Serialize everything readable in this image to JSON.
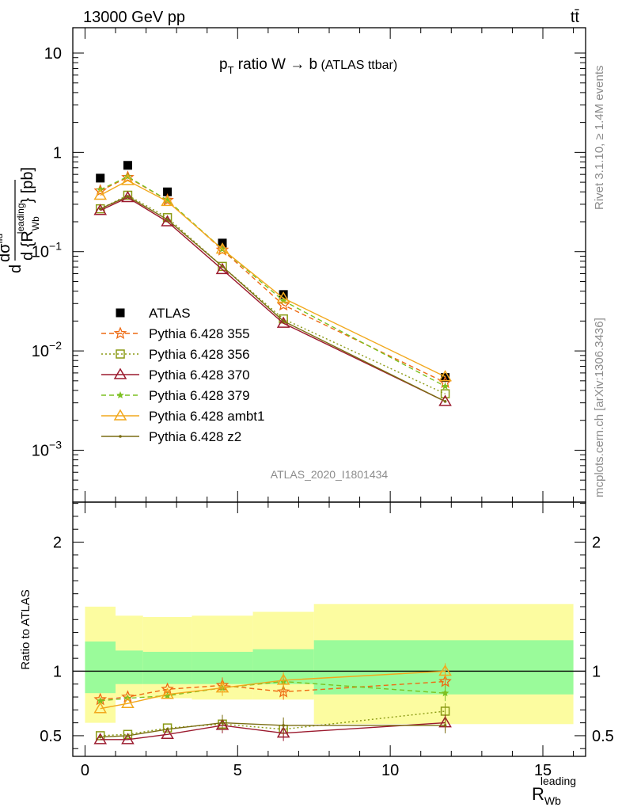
{
  "header": {
    "energy": "13000 GeV pp",
    "process": "tt̄"
  },
  "side_labels": {
    "rivet": "Rivet 3.1.10, ≥ 1.4M events",
    "mcplots": "mcplots.cern.ch [arXiv:1306.3436]"
  },
  "plot": {
    "title_pre": "p",
    "title_sub": "T",
    "title_main": " ratio W → b",
    "title_tag": " (ATLAS ttbar)",
    "analysis": "ATLAS_2020_I1801434",
    "ylabel_top": "d dσ^fid / d {R_Wb^leading} [pb]",
    "ylabel_bottom": "Ratio to ATLAS",
    "xlabel": "R",
    "xlabel_sub": "Wb",
    "xlabel_sup": "leading"
  },
  "chart_data": [
    {
      "type": "scatter",
      "yscale": "log",
      "xlim": [
        -0.4,
        16.4
      ],
      "ylim": [
        0.0003,
        18
      ],
      "ytick_values": [
        0.001,
        0.01,
        0.1,
        1,
        10
      ],
      "ytick_labels": [
        {
          "base": "10",
          "exp": "−3"
        },
        {
          "base": "10",
          "exp": "−2"
        },
        {
          "base": "10",
          "exp": "−1"
        },
        {
          "base": "1",
          "exp": ""
        },
        {
          "base": "10",
          "exp": ""
        }
      ],
      "x": [
        0.5,
        1.4,
        2.7,
        4.5,
        6.5,
        11.8
      ],
      "series": [
        {
          "name": "ATLAS",
          "color": "#000000",
          "marker": "filled-square",
          "line": "none",
          "values": [
            0.55,
            0.74,
            0.4,
            0.122,
            0.037,
            0.0054
          ]
        },
        {
          "name": "Pythia 6.428 355",
          "color": "#ee6a12",
          "marker": "open-star",
          "line": "dashed",
          "values": [
            0.41,
            0.56,
            0.33,
            0.104,
            0.029,
            0.0048
          ]
        },
        {
          "name": "Pythia 6.428 356",
          "color": "#8a9a14",
          "marker": "open-square",
          "line": "dotted",
          "values": [
            0.27,
            0.37,
            0.22,
            0.071,
            0.021,
            0.0037
          ]
        },
        {
          "name": "Pythia 6.428 370",
          "color": "#9b1a2e",
          "marker": "open-triangle",
          "line": "solid",
          "values": [
            0.26,
            0.35,
            0.2,
            0.066,
            0.019,
            0.0031
          ]
        },
        {
          "name": "Pythia 6.428 379",
          "color": "#7cc021",
          "marker": "filled-star",
          "line": "dashed",
          "values": [
            0.42,
            0.57,
            0.33,
            0.106,
            0.032,
            0.0044
          ]
        },
        {
          "name": "Pythia 6.428 ambt1",
          "color": "#f2a81d",
          "marker": "open-triangle",
          "line": "solid",
          "values": [
            0.37,
            0.52,
            0.32,
            0.106,
            0.034,
            0.0055
          ]
        },
        {
          "name": "Pythia 6.428 z2",
          "color": "#7a6d12",
          "marker": "dot",
          "line": "solid",
          "values": [
            0.27,
            0.36,
            0.21,
            0.071,
            0.02,
            0.0031
          ]
        }
      ]
    },
    {
      "type": "line",
      "xlim": [
        -0.4,
        16.4
      ],
      "ylim": [
        0.34,
        2.31
      ],
      "xticks": [
        0,
        5,
        10,
        15
      ],
      "yticks": [
        0.5,
        1,
        2
      ],
      "bands": [
        {
          "x0": 0,
          "x1": 1,
          "inner": [
            0.83,
            1.23
          ],
          "outer": [
            0.6,
            1.5
          ]
        },
        {
          "x0": 1,
          "x1": 1.9,
          "inner": [
            0.9,
            1.16
          ],
          "outer": [
            0.8,
            1.43
          ]
        },
        {
          "x0": 1.9,
          "x1": 3.5,
          "inner": [
            0.9,
            1.15
          ],
          "outer": [
            0.79,
            1.42
          ]
        },
        {
          "x0": 3.5,
          "x1": 5.5,
          "inner": [
            0.9,
            1.15
          ],
          "outer": [
            0.78,
            1.43
          ]
        },
        {
          "x0": 5.5,
          "x1": 7.5,
          "inner": [
            0.9,
            1.17
          ],
          "outer": [
            0.78,
            1.46
          ]
        },
        {
          "x0": 7.5,
          "x1": 16,
          "inner": [
            0.82,
            1.24
          ],
          "outer": [
            0.59,
            1.52
          ]
        }
      ],
      "x": [
        0.5,
        1.4,
        2.7,
        4.5,
        6.5,
        11.8
      ],
      "series": [
        {
          "name": "Pythia 6.428 355",
          "values": [
            0.78,
            0.8,
            0.86,
            0.89,
            0.84,
            0.92
          ]
        },
        {
          "name": "Pythia 6.428 356",
          "values": [
            0.5,
            0.51,
            0.56,
            0.59,
            0.55,
            0.69
          ]
        },
        {
          "name": "Pythia 6.428 370",
          "values": [
            0.47,
            0.47,
            0.51,
            0.58,
            0.52,
            0.6
          ]
        },
        {
          "name": "Pythia 6.428 379",
          "values": [
            0.77,
            0.79,
            0.81,
            0.87,
            0.92,
            0.83
          ]
        },
        {
          "name": "Pythia 6.428 ambt1",
          "values": [
            0.71,
            0.75,
            0.82,
            0.87,
            0.93,
            1.0
          ]
        },
        {
          "name": "Pythia 6.428 z2",
          "values": [
            0.49,
            0.5,
            0.55,
            0.6,
            0.58,
            0.58
          ]
        }
      ]
    }
  ]
}
